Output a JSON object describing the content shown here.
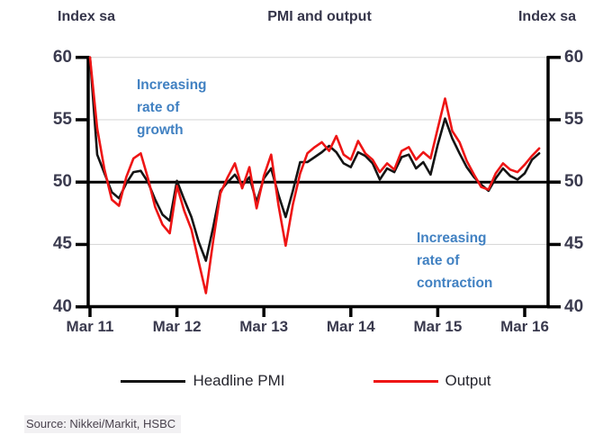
{
  "header": {
    "left_axis_label": "Index sa",
    "title": "PMI and output",
    "right_axis_label": "Index sa"
  },
  "annotations": {
    "growth": "Increasing\nrate of\ngrowth",
    "contraction": "Increasing\nrate of\ncontraction"
  },
  "legend": [
    {
      "label": "Headline PMI",
      "color": "#141414"
    },
    {
      "label": "Output",
      "color": "#ee1515"
    }
  ],
  "source": "Source: Nikkei/Markit, HSBC",
  "colors": {
    "annotation_blue": "#4181c2",
    "gridline": "#d9d9d9",
    "axis": "#000000",
    "headline_pmi": "#141414",
    "output": "#ee1515"
  },
  "chart_data": {
    "type": "line",
    "title": "PMI and output",
    "unit": "Index sa",
    "ylim": [
      40,
      60
    ],
    "y_ticks": [
      40,
      45,
      50,
      55,
      60
    ],
    "reference_line": 50,
    "grid": "horizontal-light",
    "legend_position": "bottom",
    "x_tick_labels": [
      "Mar 11",
      "Mar 12",
      "Mar 13",
      "Mar 14",
      "Mar 15",
      "Mar 16"
    ],
    "x_start": "Mar 2011",
    "x_end": "May 2016",
    "frequency": "monthly",
    "series": [
      {
        "name": "Headline PMI",
        "color": "#141414",
        "values": [
          60.0,
          52.2,
          50.7,
          49.2,
          48.7,
          49.9,
          50.8,
          50.9,
          50.0,
          48.6,
          47.4,
          46.9,
          50.1,
          48.6,
          47.2,
          45.2,
          43.7,
          46.4,
          49.3,
          50.0,
          50.6,
          49.7,
          50.4,
          48.4,
          50.3,
          51.1,
          49.0,
          47.2,
          49.3,
          51.6,
          51.6,
          52.0,
          52.4,
          52.9,
          52.4,
          51.5,
          51.2,
          52.4,
          52.1,
          51.5,
          50.2,
          51.1,
          50.8,
          52.0,
          52.2,
          51.1,
          51.6,
          50.6,
          53.0,
          55.1,
          53.5,
          52.3,
          51.2,
          50.4,
          49.8,
          49.3,
          50.3,
          51.1,
          50.5,
          50.2,
          50.7,
          51.8,
          52.3
        ]
      },
      {
        "name": "Output",
        "color": "#ee1515",
        "values": [
          60.0,
          54.3,
          51.0,
          48.6,
          48.1,
          50.4,
          51.9,
          52.3,
          50.3,
          48.0,
          46.6,
          45.9,
          49.7,
          47.7,
          46.2,
          43.6,
          41.1,
          45.3,
          49.1,
          50.4,
          51.5,
          49.5,
          51.2,
          47.9,
          50.5,
          52.2,
          48.2,
          44.9,
          48.2,
          50.7,
          52.3,
          52.8,
          53.2,
          52.5,
          53.7,
          52.2,
          51.8,
          53.3,
          52.3,
          51.8,
          50.8,
          51.5,
          51.0,
          52.5,
          52.8,
          51.8,
          52.4,
          51.9,
          54.3,
          56.7,
          54.1,
          53.2,
          51.7,
          50.6,
          49.6,
          49.4,
          50.7,
          51.5,
          51.0,
          50.8,
          51.4,
          52.1,
          52.7
        ]
      }
    ]
  }
}
